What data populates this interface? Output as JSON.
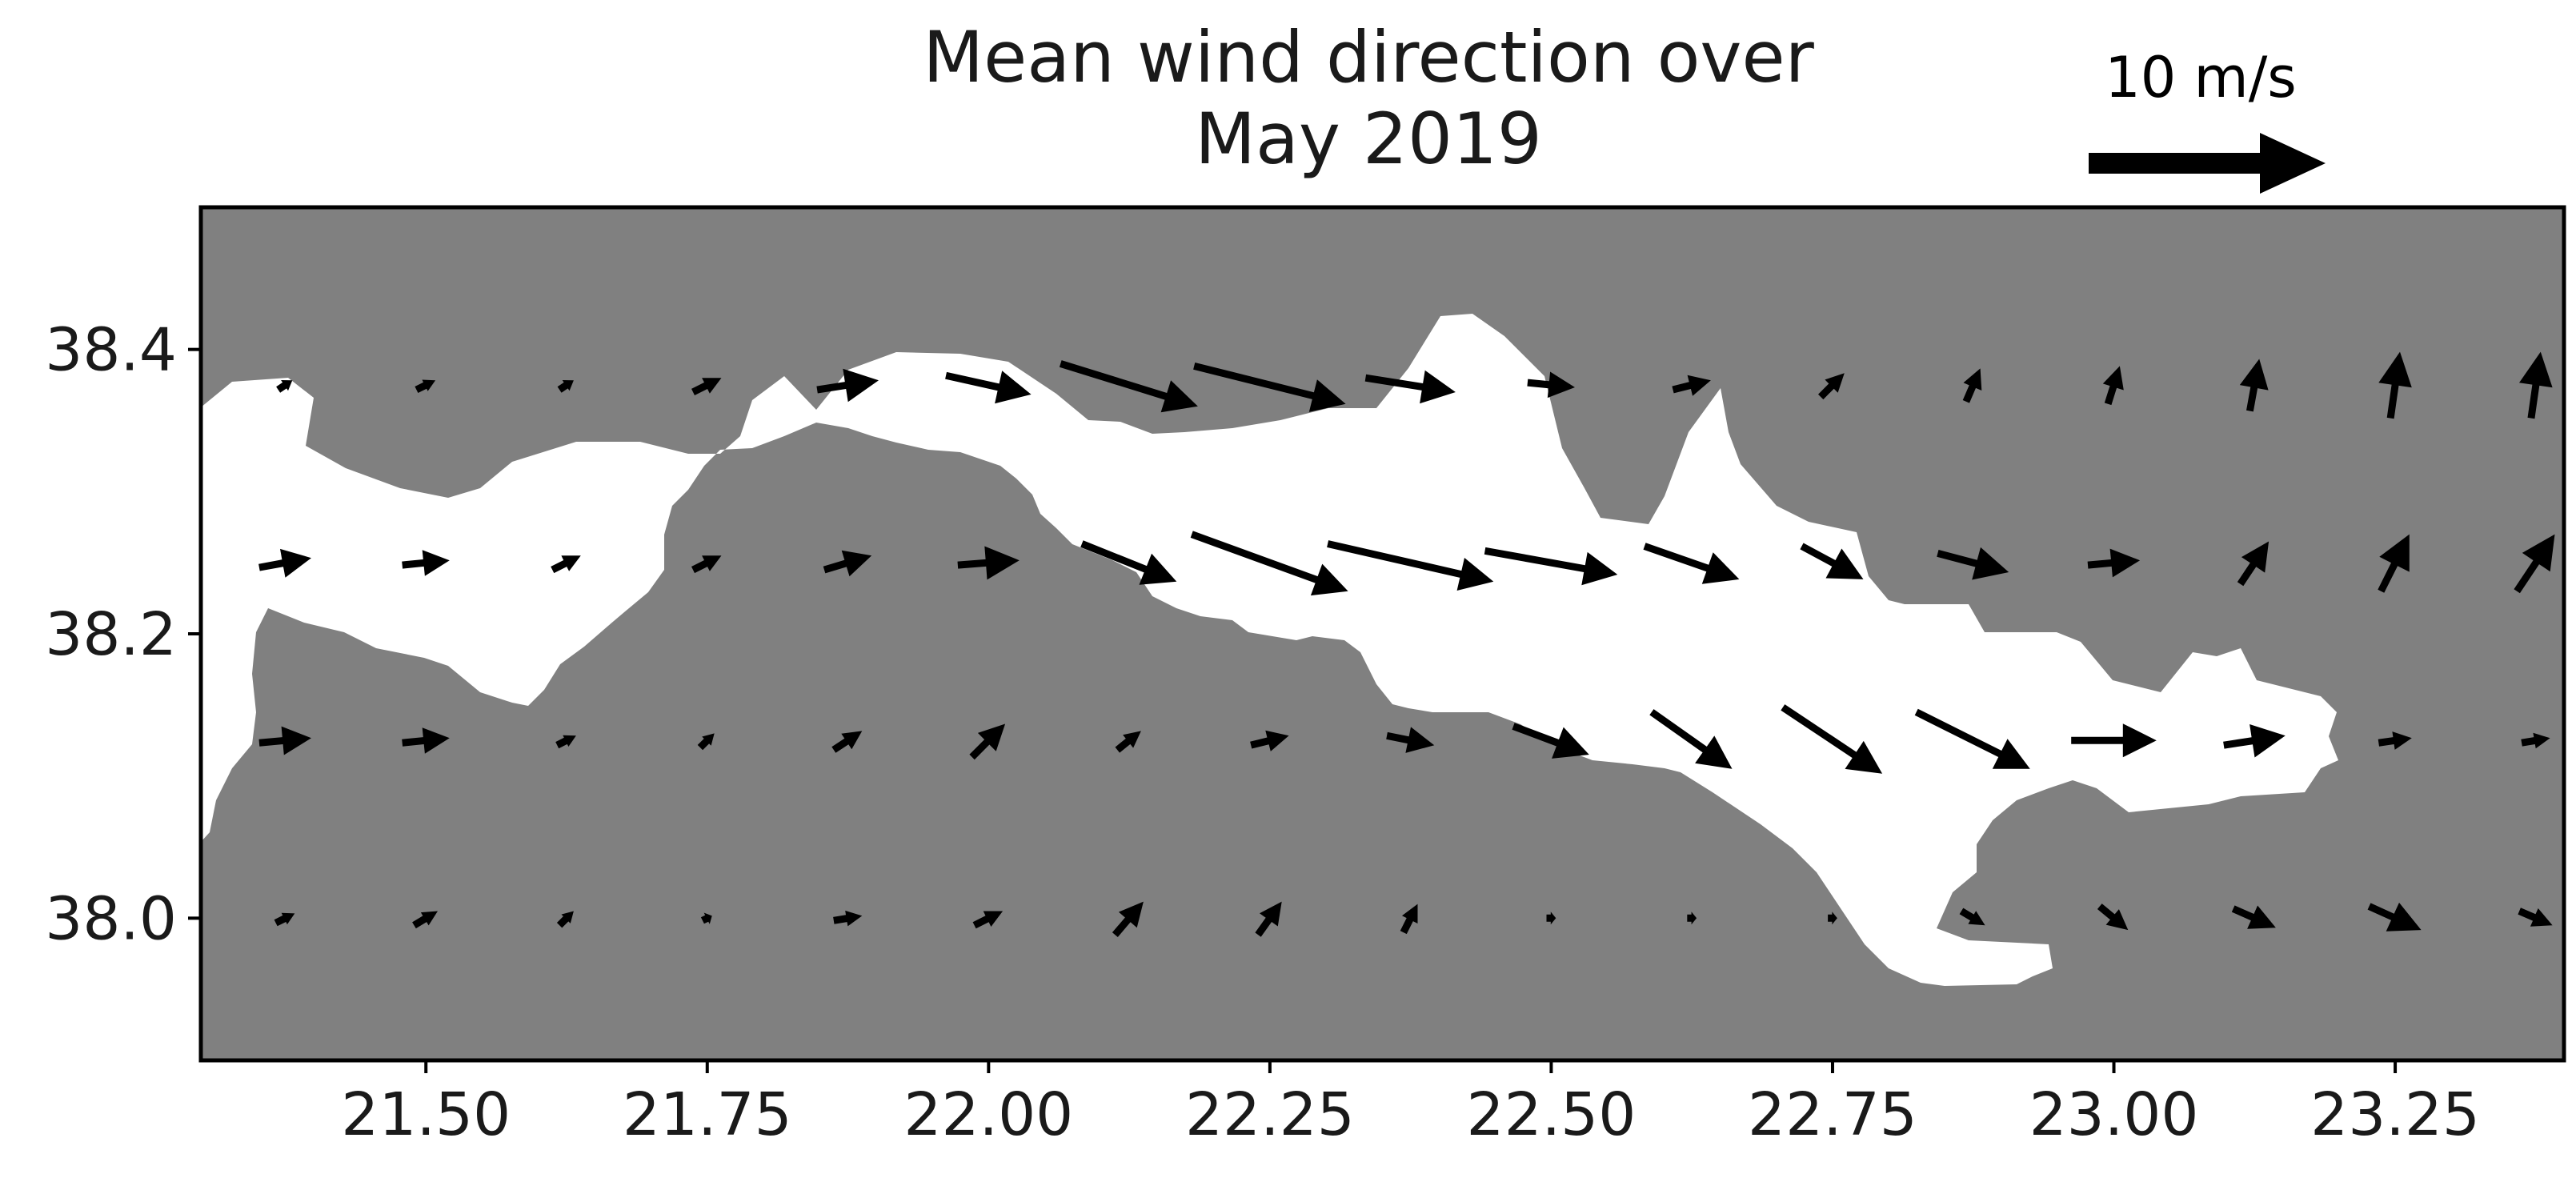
{
  "chart_data": {
    "type": "quiver",
    "title_lines": [
      "Mean wind direction over",
      "May 2019"
    ],
    "xlim": [
      21.3,
      23.4
    ],
    "ylim": [
      37.9,
      38.5
    ],
    "x_ticks": [
      "21.50",
      "21.75",
      "22.00",
      "22.25",
      "22.50",
      "22.75",
      "23.00",
      "23.25"
    ],
    "y_ticks": [
      "38.0",
      "38.2",
      "38.4"
    ],
    "x_tick_values": [
      21.5,
      21.75,
      22.0,
      22.25,
      22.5,
      22.75,
      23.0,
      23.25
    ],
    "y_tick_values": [
      38.0,
      38.2,
      38.4
    ],
    "reference_arrow": {
      "label": "10 m/s",
      "speed": 10
    },
    "background": {
      "land_color": "#808080",
      "sea_color": "#ffffff"
    },
    "grid": false,
    "grid_lon": [
      21.375,
      21.5,
      21.625,
      21.75,
      21.875,
      22.0,
      22.125,
      22.25,
      22.375,
      22.5,
      22.625,
      22.75,
      22.875,
      23.0,
      23.125,
      23.25,
      23.375
    ],
    "grid_lat": [
      38.375,
      38.25,
      38.125,
      38.0
    ],
    "u": [
      [
        0.6,
        0.8,
        0.6,
        1.2,
        2.6,
        3.6,
        5.8,
        6.4,
        3.8,
        2.0,
        1.6,
        1.0,
        0.6,
        0.5,
        0.4,
        0.4,
        0.4
      ],
      [
        2.2,
        2.0,
        1.2,
        1.2,
        2.0,
        2.6,
        4.0,
        6.6,
        7.0,
        5.6,
        4.0,
        2.6,
        3.0,
        2.2,
        1.2,
        1.2,
        1.6
      ],
      [
        2.2,
        2.0,
        0.8,
        0.6,
        1.2,
        1.4,
        1.0,
        1.6,
        2.0,
        3.2,
        3.4,
        4.2,
        4.8,
        3.6,
        2.6,
        1.4,
        1.2
      ],
      [
        0.8,
        1.0,
        0.6,
        0.4,
        1.2,
        1.2,
        1.2,
        1.0,
        0.6,
        0.4,
        0.4,
        0.4,
        1.0,
        1.2,
        1.8,
        2.2,
        1.4
      ]
    ],
    "v": [
      [
        0.4,
        0.4,
        0.4,
        0.6,
        0.4,
        -0.8,
        -1.8,
        -1.6,
        -0.6,
        -0.2,
        0.4,
        1.0,
        1.4,
        1.6,
        2.2,
        2.8,
        2.8
      ],
      [
        0.4,
        0.2,
        0.6,
        0.6,
        0.6,
        0.2,
        -1.6,
        -2.4,
        -1.6,
        -1.0,
        -1.4,
        -1.4,
        -0.8,
        0.2,
        1.8,
        2.4,
        2.4
      ],
      [
        0.2,
        0.2,
        0.4,
        0.6,
        0.8,
        1.4,
        0.8,
        0.4,
        -0.4,
        -1.2,
        -2.4,
        -2.8,
        -2.4,
        0.0,
        0.4,
        0.2,
        0.2
      ],
      [
        0.4,
        0.6,
        0.6,
        0.2,
        0.2,
        0.6,
        1.4,
        1.4,
        1.2,
        0.0,
        0.0,
        0.0,
        -0.6,
        -1.0,
        -0.8,
        -1.0,
        -0.6
      ]
    ]
  }
}
